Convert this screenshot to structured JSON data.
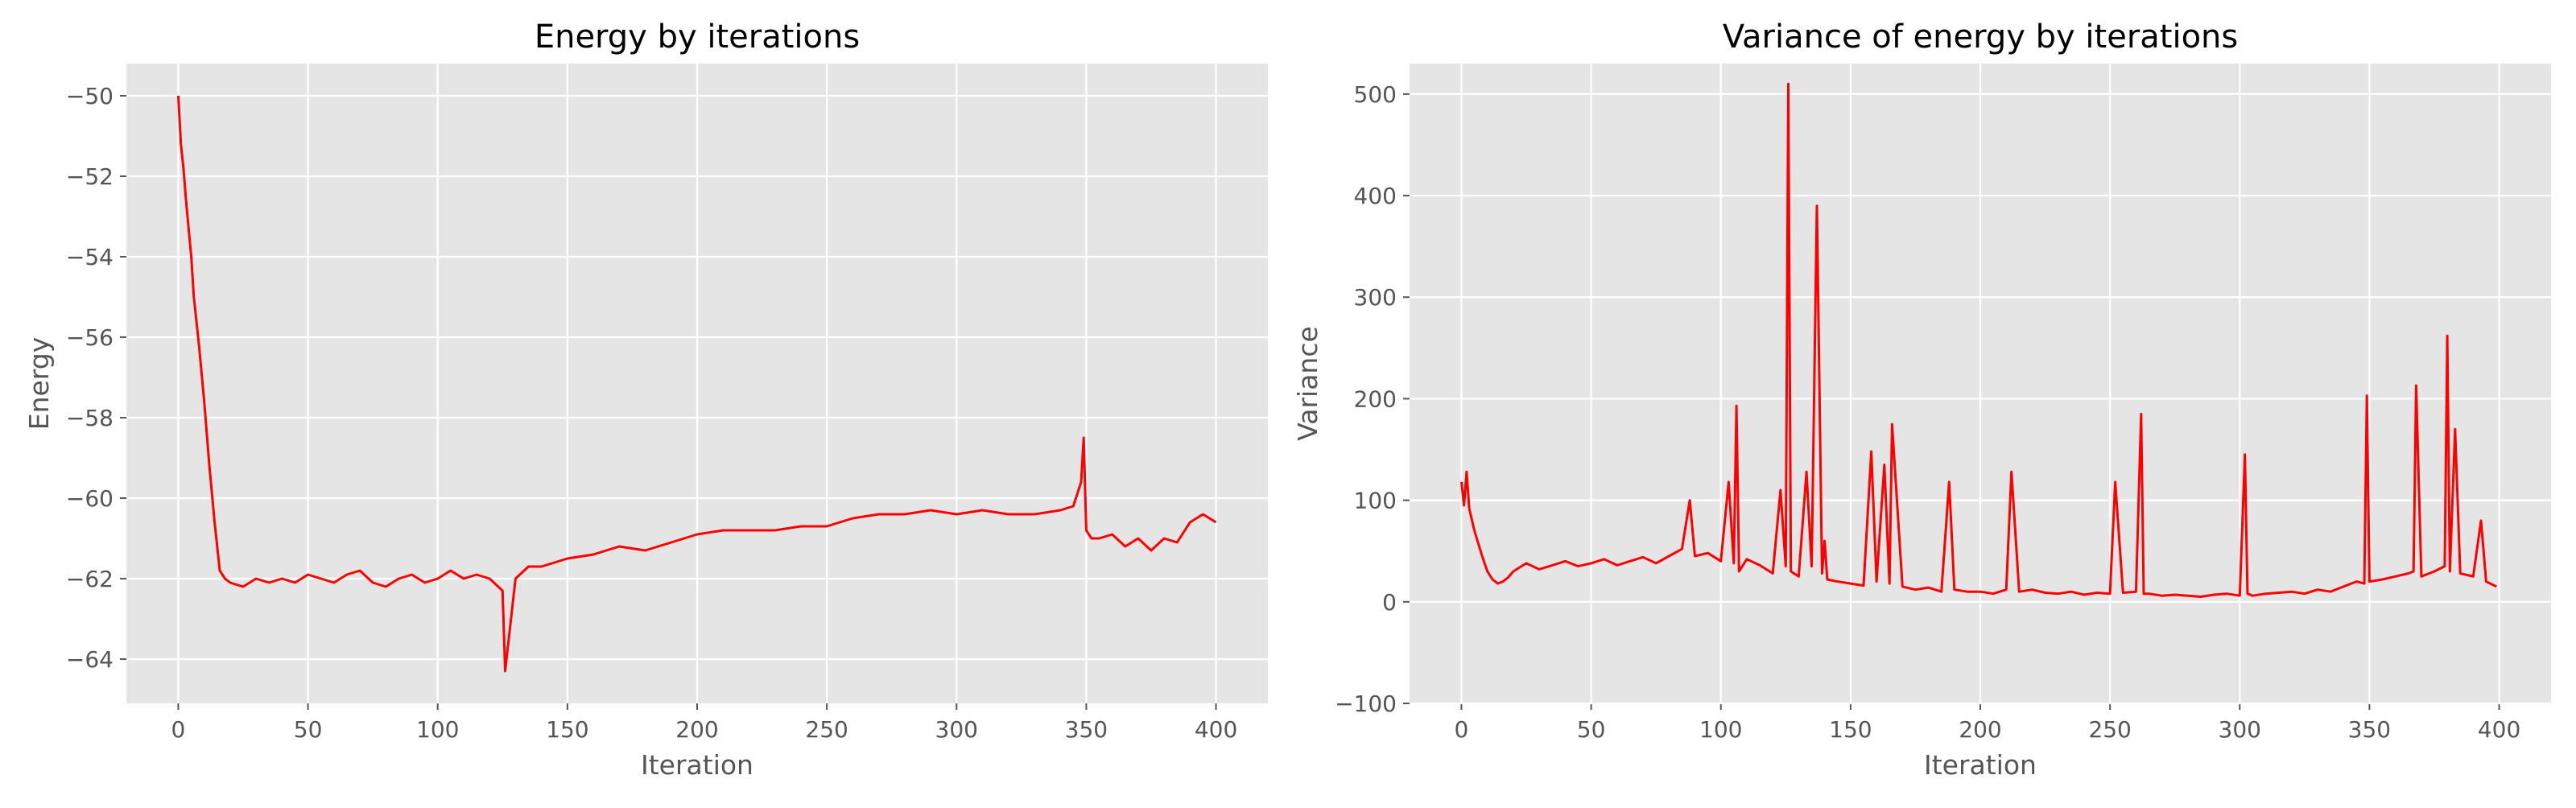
{
  "chart_data": [
    {
      "type": "line",
      "title": "Energy by iterations",
      "xlabel": "Iteration",
      "ylabel": "Energy",
      "xlim": [
        -20,
        420
      ],
      "ylim": [
        -65.1,
        -49.2
      ],
      "xticks": [
        0,
        50,
        100,
        150,
        200,
        250,
        300,
        350,
        400
      ],
      "yticks": [
        -64,
        -62,
        -60,
        -58,
        -56,
        -54,
        -52,
        -50
      ],
      "xtick_labels": [
        "0",
        "50",
        "100",
        "150",
        "200",
        "250",
        "300",
        "350",
        "400"
      ],
      "ytick_labels": [
        "−64",
        "−62",
        "−60",
        "−58",
        "−56",
        "−54",
        "−52",
        "−50"
      ],
      "grid": true,
      "style": "ggplot",
      "series": [
        {
          "color": "#ff0000",
          "x": [
            0,
            1,
            2,
            3,
            4,
            5,
            6,
            8,
            10,
            12,
            14,
            16,
            18,
            20,
            25,
            30,
            35,
            40,
            45,
            50,
            55,
            60,
            65,
            70,
            75,
            80,
            85,
            90,
            95,
            100,
            105,
            110,
            115,
            120,
            125,
            126,
            130,
            135,
            140,
            145,
            150,
            160,
            170,
            180,
            190,
            200,
            210,
            220,
            230,
            240,
            250,
            260,
            270,
            280,
            290,
            300,
            310,
            320,
            330,
            340,
            345,
            348,
            349,
            350,
            352,
            355,
            360,
            365,
            370,
            375,
            380,
            385,
            390,
            395,
            400
          ],
          "y": [
            -50.0,
            -51.2,
            -51.8,
            -52.6,
            -53.3,
            -54.0,
            -55.0,
            -56.2,
            -57.6,
            -59.2,
            -60.6,
            -61.8,
            -62.0,
            -62.1,
            -62.2,
            -62.0,
            -62.1,
            -62.0,
            -62.1,
            -61.9,
            -62.0,
            -62.1,
            -61.9,
            -61.8,
            -62.1,
            -62.2,
            -62.0,
            -61.9,
            -62.1,
            -62.0,
            -61.8,
            -62.0,
            -61.9,
            -62.0,
            -62.3,
            -64.3,
            -62.0,
            -61.7,
            -61.7,
            -61.6,
            -61.5,
            -61.4,
            -61.2,
            -61.3,
            -61.1,
            -60.9,
            -60.8,
            -60.8,
            -60.8,
            -60.7,
            -60.7,
            -60.5,
            -60.4,
            -60.4,
            -60.3,
            -60.4,
            -60.3,
            -60.4,
            -60.4,
            -60.3,
            -60.2,
            -59.6,
            -58.5,
            -60.8,
            -61.0,
            -61.0,
            -60.9,
            -61.2,
            -61.0,
            -61.3,
            -61.0,
            -61.1,
            -60.6,
            -60.4,
            -60.6
          ]
        }
      ]
    },
    {
      "type": "line",
      "title": "Variance of energy by iterations",
      "xlabel": "Iteration",
      "ylabel": "Variance",
      "xlim": [
        -20,
        420
      ],
      "ylim": [
        -100,
        530
      ],
      "xticks": [
        0,
        50,
        100,
        150,
        200,
        250,
        300,
        350,
        400
      ],
      "yticks": [
        -100,
        0,
        100,
        200,
        300,
        400,
        500
      ],
      "xtick_labels": [
        "0",
        "50",
        "100",
        "150",
        "200",
        "250",
        "300",
        "350",
        "400"
      ],
      "ytick_labels": [
        "−100",
        "0",
        "100",
        "200",
        "300",
        "400",
        "500"
      ],
      "grid": true,
      "style": "ggplot",
      "series": [
        {
          "color": "#ff0000",
          "x": [
            0,
            1,
            2,
            3,
            5,
            8,
            10,
            12,
            14,
            16,
            18,
            20,
            25,
            30,
            35,
            40,
            45,
            50,
            55,
            60,
            65,
            70,
            75,
            80,
            85,
            88,
            90,
            95,
            100,
            103,
            105,
            106,
            107,
            110,
            115,
            120,
            123,
            125,
            126,
            127,
            130,
            133,
            135,
            137,
            139,
            140,
            141,
            145,
            150,
            155,
            158,
            160,
            163,
            165,
            166,
            170,
            175,
            180,
            185,
            188,
            190,
            195,
            200,
            205,
            210,
            212,
            215,
            220,
            225,
            230,
            235,
            240,
            245,
            250,
            252,
            255,
            260,
            262,
            263,
            265,
            270,
            275,
            280,
            285,
            290,
            295,
            300,
            302,
            303,
            305,
            310,
            315,
            320,
            325,
            330,
            335,
            340,
            345,
            348,
            349,
            350,
            355,
            360,
            365,
            367,
            368,
            370,
            375,
            379,
            380,
            381,
            383,
            385,
            390,
            393,
            395,
            399
          ],
          "y": [
            118,
            95,
            128,
            92,
            70,
            45,
            30,
            22,
            18,
            20,
            24,
            30,
            38,
            32,
            36,
            40,
            35,
            38,
            42,
            36,
            40,
            44,
            38,
            45,
            52,
            100,
            45,
            48,
            40,
            118,
            38,
            193,
            30,
            42,
            36,
            28,
            110,
            35,
            510,
            30,
            25,
            128,
            35,
            390,
            28,
            60,
            22,
            20,
            18,
            16,
            148,
            20,
            135,
            18,
            175,
            15,
            12,
            14,
            10,
            118,
            12,
            10,
            10,
            8,
            12,
            128,
            10,
            12,
            9,
            8,
            10,
            7,
            9,
            8,
            118,
            9,
            10,
            185,
            8,
            8,
            6,
            7,
            6,
            5,
            7,
            8,
            6,
            145,
            8,
            6,
            8,
            9,
            10,
            8,
            12,
            10,
            15,
            20,
            18,
            203,
            20,
            22,
            25,
            28,
            30,
            213,
            25,
            30,
            35,
            262,
            30,
            170,
            28,
            25,
            80,
            20,
            15
          ]
        }
      ]
    }
  ]
}
